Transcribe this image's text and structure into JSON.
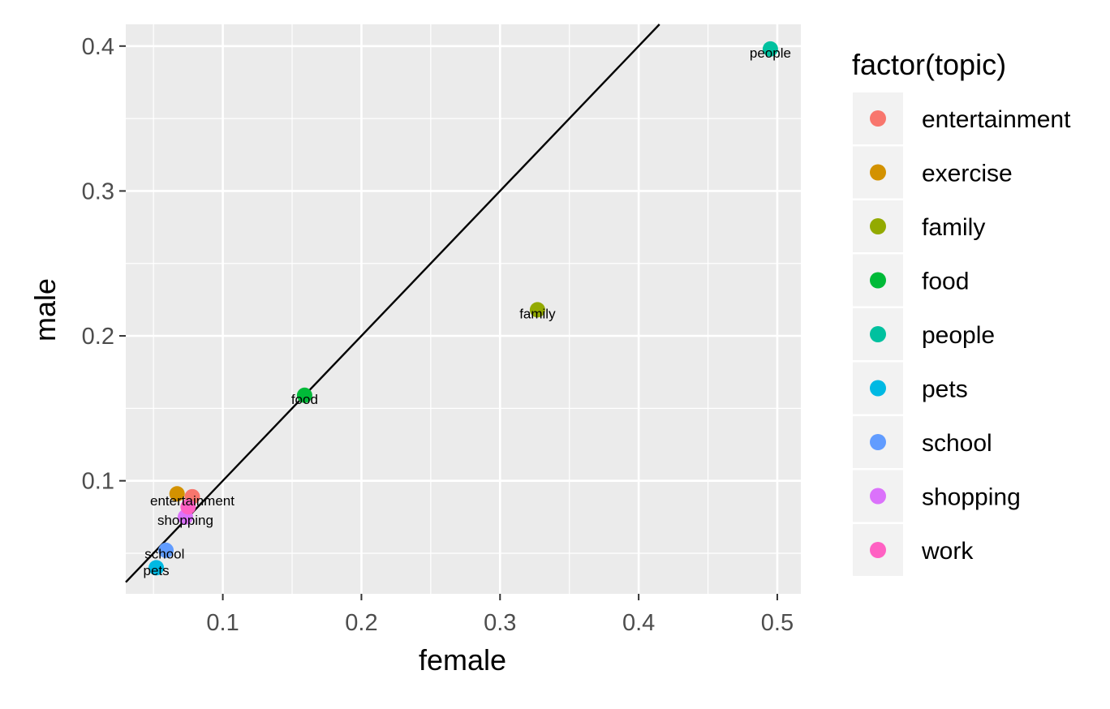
{
  "chart_data": {
    "type": "scatter",
    "title": "",
    "xlabel": "female",
    "ylabel": "male",
    "xlim": [
      0.03,
      0.517
    ],
    "ylim": [
      0.022,
      0.415
    ],
    "x_ticks": [
      0.1,
      0.2,
      0.3,
      0.4,
      0.5
    ],
    "x_tick_labels": [
      "0.1",
      "0.2",
      "0.3",
      "0.4",
      "0.5"
    ],
    "y_ticks": [
      0.1,
      0.2,
      0.3,
      0.4
    ],
    "y_tick_labels": [
      "0.1",
      "0.2",
      "0.3",
      "0.4"
    ],
    "grid": true,
    "reference_line": {
      "slope": 1,
      "intercept": 0,
      "color": "#000000"
    },
    "legend": {
      "title": "factor(topic)",
      "placement": "right"
    },
    "points": [
      {
        "topic": "entertainment",
        "x": 0.078,
        "y": 0.089,
        "color": "#F8766D"
      },
      {
        "topic": "exercise",
        "x": 0.067,
        "y": 0.091,
        "color": "#D39200"
      },
      {
        "topic": "family",
        "x": 0.327,
        "y": 0.218,
        "color": "#93AA00"
      },
      {
        "topic": "food",
        "x": 0.159,
        "y": 0.159,
        "color": "#00BA38"
      },
      {
        "topic": "people",
        "x": 0.495,
        "y": 0.398,
        "color": "#00C19F"
      },
      {
        "topic": "pets",
        "x": 0.052,
        "y": 0.04,
        "color": "#00B9E3"
      },
      {
        "topic": "school",
        "x": 0.059,
        "y": 0.052,
        "color": "#619CFF"
      },
      {
        "topic": "shopping",
        "x": 0.073,
        "y": 0.075,
        "color": "#DB72FB"
      },
      {
        "topic": "work",
        "x": 0.075,
        "y": 0.082,
        "color": "#FF61C3"
      }
    ],
    "point_labels": [
      {
        "text": "entertainment",
        "x": 0.078,
        "y": 0.0855
      },
      {
        "text": "shopping",
        "x": 0.073,
        "y": 0.072
      },
      {
        "text": "school",
        "x": 0.058,
        "y": 0.049
      },
      {
        "text": "pets",
        "x": 0.052,
        "y": 0.0375
      },
      {
        "text": "food",
        "x": 0.159,
        "y": 0.1555
      },
      {
        "text": "family",
        "x": 0.327,
        "y": 0.2145
      },
      {
        "text": "people",
        "x": 0.495,
        "y": 0.3945
      }
    ],
    "legend_items": [
      {
        "label": "entertainment",
        "color": "#F8766D"
      },
      {
        "label": "exercise",
        "color": "#D39200"
      },
      {
        "label": "family",
        "color": "#93AA00"
      },
      {
        "label": "food",
        "color": "#00BA38"
      },
      {
        "label": "people",
        "color": "#00C19F"
      },
      {
        "label": "pets",
        "color": "#00B9E3"
      },
      {
        "label": "school",
        "color": "#619CFF"
      },
      {
        "label": "shopping",
        "color": "#DB72FB"
      },
      {
        "label": "work",
        "color": "#FF61C3"
      }
    ]
  }
}
